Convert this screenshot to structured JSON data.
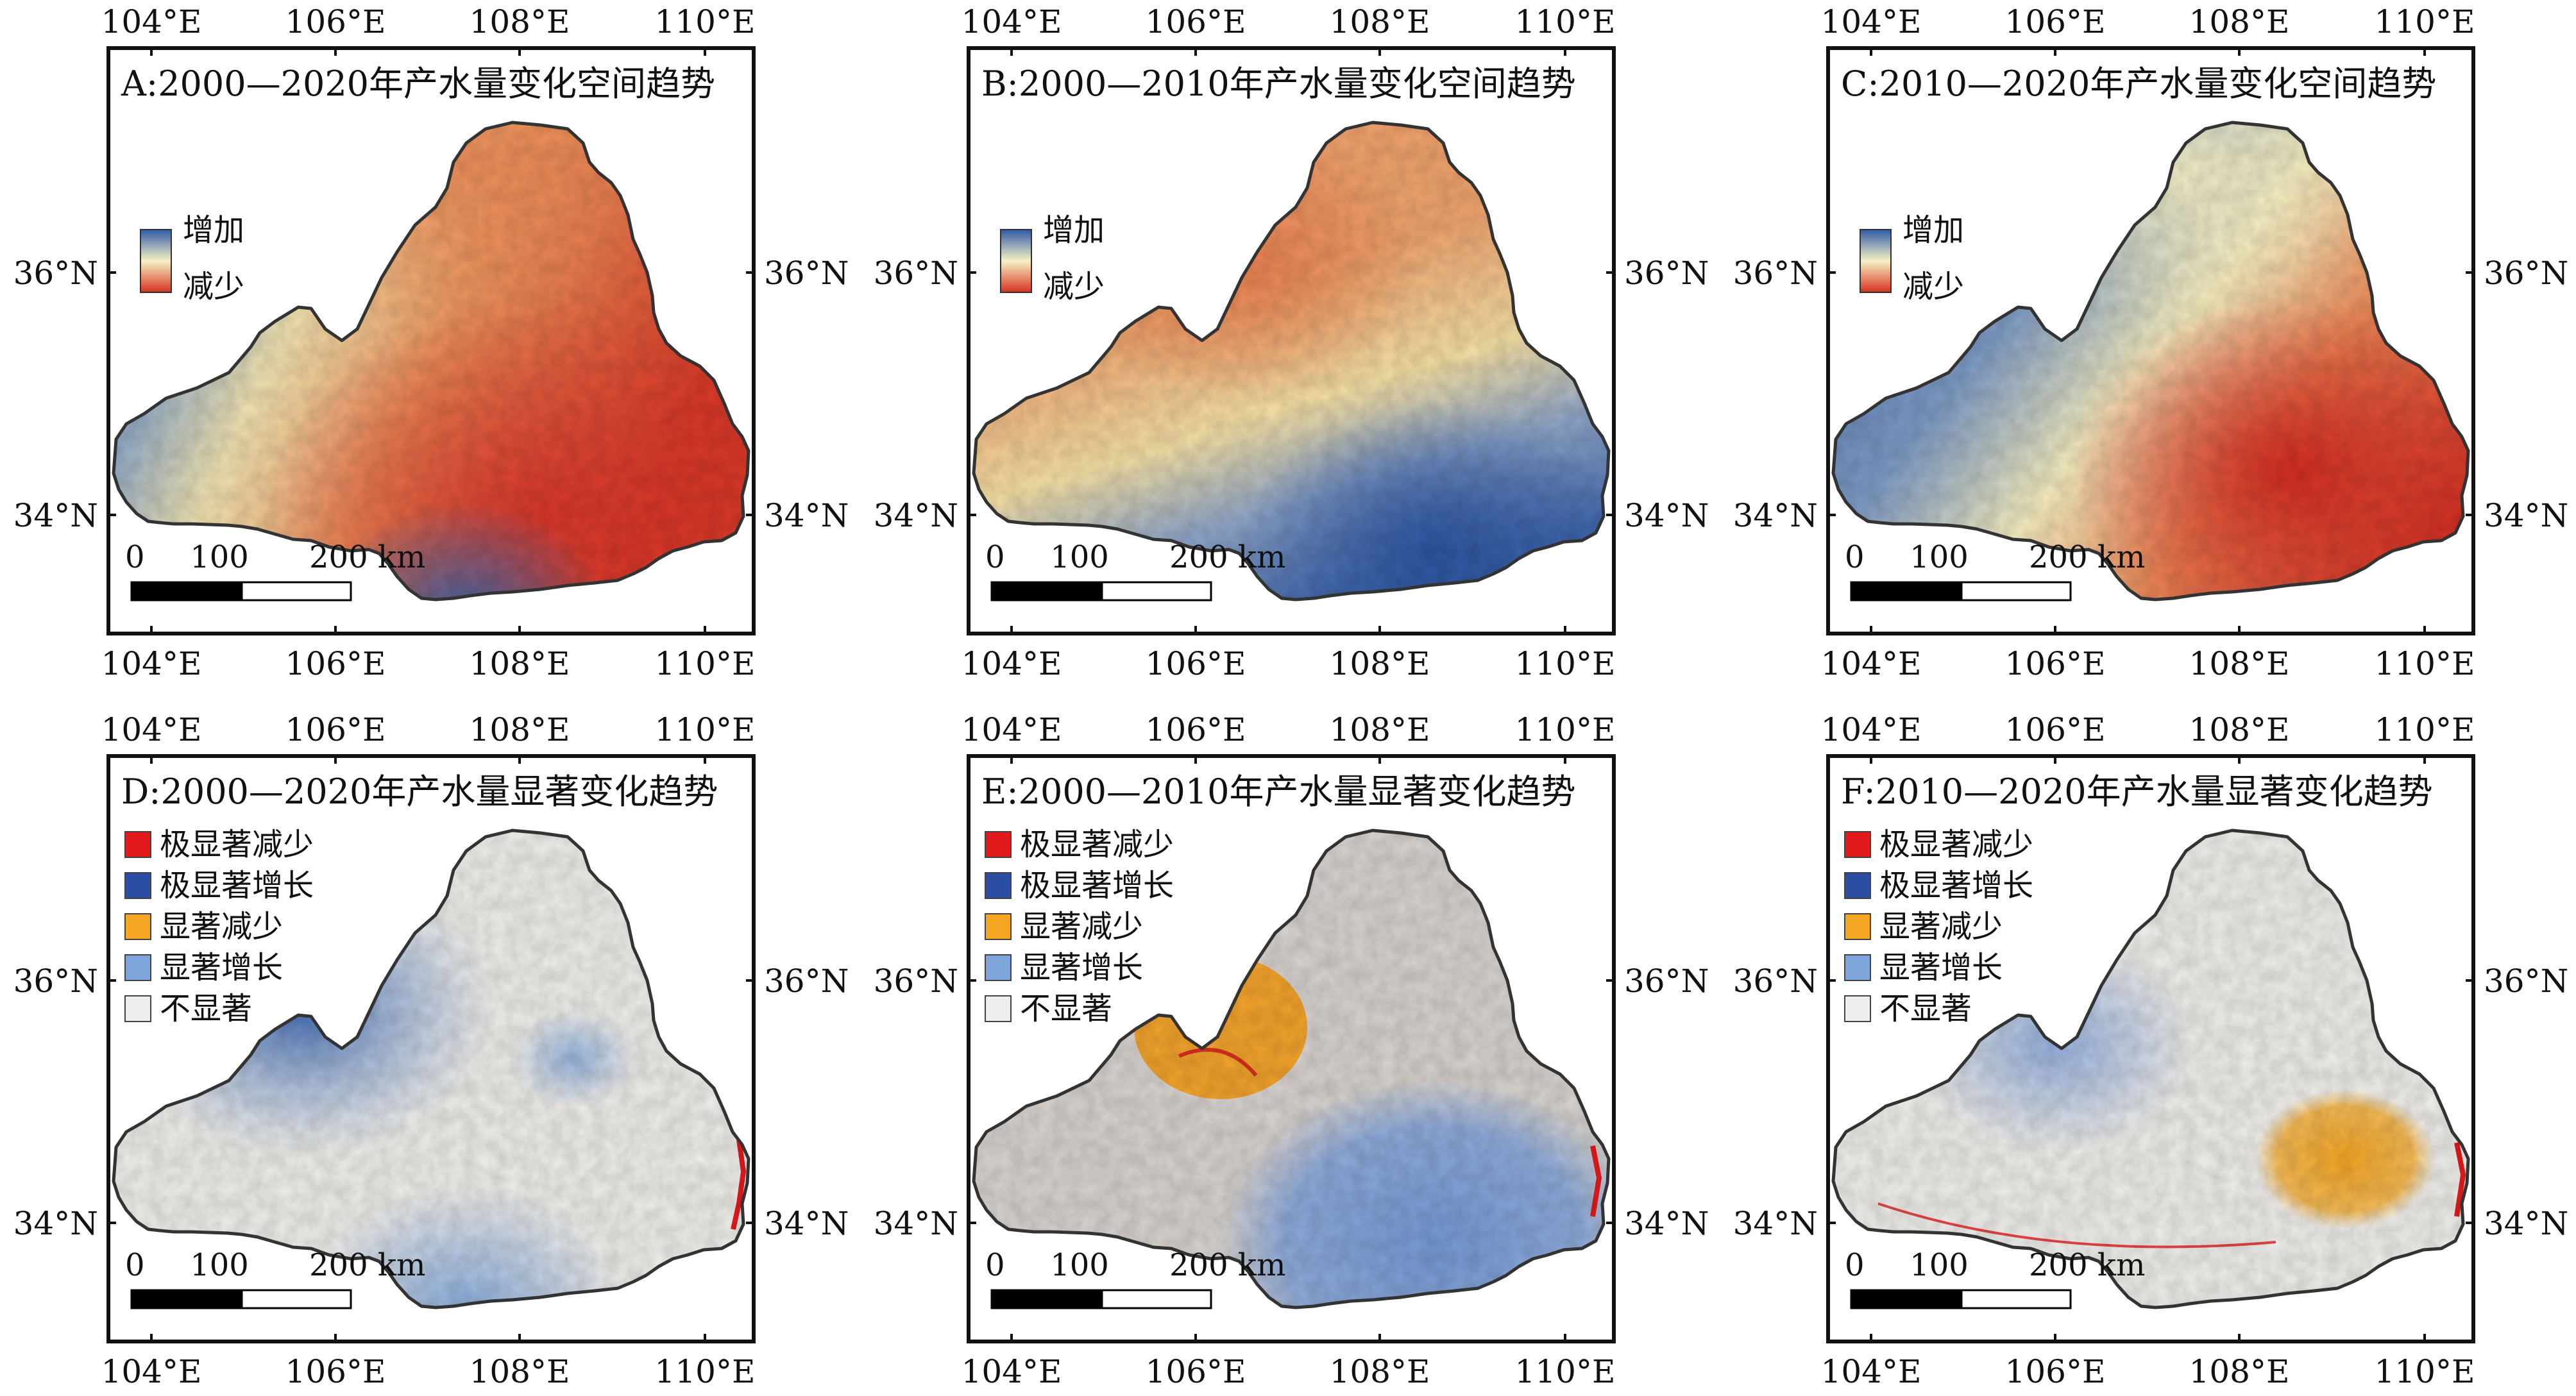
{
  "lon_labels": [
    "104°E",
    "106°E",
    "108°E",
    "110°E"
  ],
  "lat_labels": [
    "36°N",
    "34°N"
  ],
  "scale_bar": {
    "labels": [
      "0",
      "100",
      "200 km"
    ]
  },
  "gradient_legend": {
    "high": "增加",
    "low": "减少"
  },
  "class_legend": [
    {
      "label": "极显著减少",
      "color": "#e31a1c"
    },
    {
      "label": "极显著增长",
      "color": "#2b4ea2"
    },
    {
      "label": "显著减少",
      "color": "#f5a623"
    },
    {
      "label": "显著增长",
      "color": "#7fa6dc"
    },
    {
      "label": "不显著",
      "color": "#eeeeee"
    }
  ],
  "panels": [
    {
      "id": "A",
      "title": "A:2000—2020年产水量变化空间趋势",
      "kind": "gradient"
    },
    {
      "id": "B",
      "title": "B:2000—2010年产水量变化空间趋势",
      "kind": "gradient"
    },
    {
      "id": "C",
      "title": "C:2010—2020年产水量变化空间趋势",
      "kind": "gradient"
    },
    {
      "id": "D",
      "title": "D:2000—2020年产水量显著变化趋势",
      "kind": "classes"
    },
    {
      "id": "E",
      "title": "E:2000—2010年产水量显著变化趋势",
      "kind": "classes"
    },
    {
      "id": "F",
      "title": "F:2010—2020年产水量显著变化趋势",
      "kind": "classes"
    }
  ],
  "colors": {
    "increase": "#2f5aa8",
    "neutral": "#f7f1c4",
    "decrease": "#d7301f",
    "frame": "#111111",
    "boundary": "#333333",
    "not_significant_fill_E": "#d8d3cf"
  }
}
